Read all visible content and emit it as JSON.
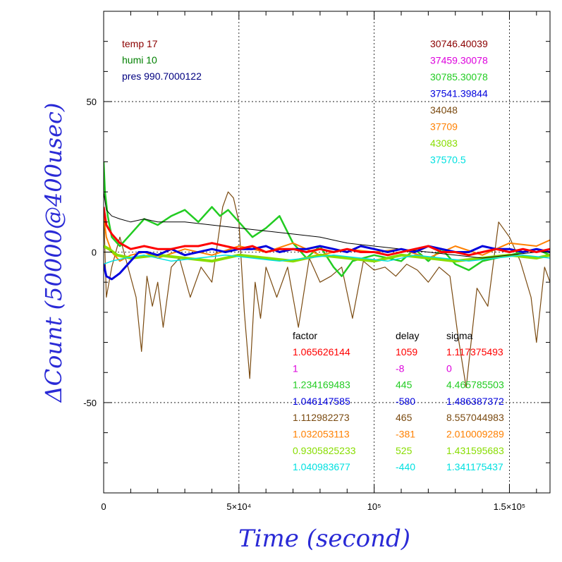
{
  "chart_data": {
    "type": "line",
    "xlabel": "Time (second)",
    "ylabel": "ΔCount (50000@400usec)",
    "xlim": [
      0,
      165000
    ],
    "ylim": [
      -80,
      80
    ],
    "grid": true,
    "x_ticks": [
      {
        "value": 0,
        "label": "0"
      },
      {
        "value": 50000,
        "label": "5×10⁴"
      },
      {
        "value": 100000,
        "label": "10⁵"
      },
      {
        "value": 150000,
        "label": "1.5×10⁵"
      }
    ],
    "y_ticks": [
      {
        "value": -50,
        "label": "-50"
      },
      {
        "value": 0,
        "label": "0"
      },
      {
        "value": 50,
        "label": "50"
      }
    ],
    "env": [
      {
        "text": "temp 17",
        "color": "#8b0000"
      },
      {
        "text": "humi 10",
        "color": "#008000"
      },
      {
        "text": "pres 990.7000122",
        "color": "#000080"
      }
    ],
    "means": [
      {
        "text": "30746.40039",
        "color": "#8b0000"
      },
      {
        "text": "37459.30078",
        "color": "#dd00dd"
      },
      {
        "text": "30785.30078",
        "color": "#22cc22"
      },
      {
        "text": "37541.39844",
        "color": "#0000dd"
      },
      {
        "text": "34048",
        "color": "#7a4a10"
      },
      {
        "text": "37709",
        "color": "#ff8000"
      },
      {
        "text": "43083",
        "color": "#88dd00"
      },
      {
        "text": "37570.5",
        "color": "#00e0e0"
      }
    ],
    "param_headers": {
      "factor": "factor",
      "delay": "delay",
      "sigma": "sigma"
    },
    "params": [
      {
        "factor": "1.065626144",
        "delay": "1059",
        "sigma": "1.117375493",
        "color": "#ff0000"
      },
      {
        "factor": "1",
        "delay": "-8",
        "sigma": "0",
        "color": "#dd00dd"
      },
      {
        "factor": "1.234169483",
        "delay": "445",
        "sigma": "4.465785503",
        "color": "#22cc22"
      },
      {
        "factor": "1.046147585",
        "delay": "-580",
        "sigma": "1.486387372",
        "color": "#0000dd"
      },
      {
        "factor": "1.112982273",
        "delay": "465",
        "sigma": "8.557044983",
        "color": "#7a4a10"
      },
      {
        "factor": "1.032053113",
        "delay": "-381",
        "sigma": "2.010009289",
        "color": "#ff8000"
      },
      {
        "factor": "0.9305825233",
        "delay": "525",
        "sigma": "1.431595683",
        "color": "#88dd00"
      },
      {
        "factor": "1.040983677",
        "delay": "-440",
        "sigma": "1.341175437",
        "color": "#00e0e0"
      }
    ],
    "series": [
      {
        "color": "#7a4a10",
        "width": 1.2,
        "x": [
          0,
          1000,
          3000,
          6000,
          9000,
          12000,
          14000,
          16000,
          18000,
          20000,
          22000,
          25000,
          28000,
          32000,
          36000,
          40000,
          44000,
          46000,
          48000,
          50000,
          52000,
          54000,
          56000,
          58000,
          60000,
          64000,
          68000,
          72000,
          76000,
          80000,
          84000,
          88000,
          92000,
          96000,
          100000,
          104000,
          108000,
          112000,
          116000,
          120000,
          124000,
          128000,
          131000,
          134000,
          138000,
          142000,
          146000,
          150000,
          154000,
          158000,
          160000,
          163000,
          165000
        ],
        "y": [
          15,
          -15,
          -5,
          5,
          -5,
          -15,
          -33,
          -8,
          -18,
          -10,
          -25,
          -5,
          -2,
          -15,
          -5,
          -10,
          15,
          20,
          18,
          10,
          -20,
          -42,
          -10,
          -22,
          -5,
          -15,
          -5,
          -25,
          -2,
          -10,
          -8,
          -5,
          -22,
          -3,
          -6,
          -5,
          -8,
          -4,
          -6,
          -10,
          -5,
          -8,
          -28,
          -45,
          -12,
          -18,
          10,
          5,
          -3,
          -15,
          -30,
          -5,
          -10
        ]
      },
      {
        "color": "#22cc22",
        "width": 2.5,
        "x": [
          0,
          500,
          1500,
          3000,
          6000,
          10000,
          15000,
          20000,
          25000,
          30000,
          35000,
          40000,
          43000,
          46000,
          50000,
          55000,
          60000,
          65000,
          70000,
          75000,
          80000,
          85000,
          88000,
          92000,
          96000,
          100000,
          105000,
          110000,
          115000,
          120000,
          125000,
          130000,
          135000,
          140000,
          145000,
          150000,
          155000,
          160000,
          165000
        ],
        "y": [
          30,
          20,
          12,
          5,
          2,
          6,
          11,
          9,
          12,
          14,
          10,
          15,
          12,
          14,
          10,
          5,
          8,
          12,
          3,
          -2,
          2,
          -5,
          -8,
          -3,
          -2,
          -1,
          -2,
          -3,
          1,
          -3,
          1,
          -4,
          -6,
          -3,
          -2,
          -1,
          0,
          1,
          -1
        ]
      },
      {
        "color": "#ff8000",
        "width": 2,
        "x": [
          0,
          1000,
          3000,
          6000,
          10000,
          15000,
          20000,
          30000,
          40000,
          50000,
          60000,
          70000,
          80000,
          90000,
          100000,
          110000,
          120000,
          130000,
          140000,
          150000,
          160000,
          165000
        ],
        "y": [
          12,
          5,
          0,
          -3,
          -1,
          0,
          -2,
          1,
          -1,
          2,
          0,
          3,
          -1,
          1,
          0,
          1,
          -2,
          2,
          -1,
          3,
          2,
          4
        ]
      },
      {
        "color": "#88dd00",
        "width": 4,
        "x": [
          0,
          2000,
          5000,
          10000,
          20000,
          30000,
          40000,
          50000,
          60000,
          70000,
          80000,
          90000,
          100000,
          110000,
          120000,
          130000,
          140000,
          150000,
          160000,
          165000
        ],
        "y": [
          2,
          1,
          -1,
          -2,
          -1,
          -2,
          -3,
          -1,
          -2,
          -3,
          -1,
          -2,
          -3,
          -1,
          -2,
          -3,
          -2,
          -1,
          -2,
          -1
        ]
      },
      {
        "color": "#00e0e0",
        "width": 1.5,
        "x": [
          0,
          3000,
          8000,
          15000,
          25000,
          35000,
          45000,
          55000,
          65000,
          75000,
          85000,
          95000,
          105000,
          115000,
          125000,
          135000,
          145000,
          155000,
          165000
        ],
        "y": [
          -4,
          -3,
          -2,
          -1,
          -3,
          -2,
          -1,
          -2,
          -3,
          -2,
          -1,
          -2,
          -3,
          -1,
          -2,
          -3,
          -2,
          -1,
          -2
        ]
      },
      {
        "color": "#000000",
        "width": 1,
        "x": [
          0,
          1000,
          3000,
          6000,
          10000,
          15000,
          20000,
          30000,
          40000,
          50000,
          60000,
          70000,
          80000,
          90000,
          100000,
          110000,
          120000,
          130000,
          140000,
          150000,
          160000,
          165000
        ],
        "y": [
          20,
          14,
          12,
          11,
          10,
          11,
          10,
          10,
          9,
          8,
          7,
          6,
          5,
          3,
          2,
          1,
          0,
          -1,
          -2,
          -1,
          0,
          1
        ]
      },
      {
        "color": "#0000dd",
        "width": 3,
        "x": [
          0,
          1000,
          3000,
          6000,
          10000,
          13000,
          16000,
          20000,
          25000,
          30000,
          35000,
          40000,
          45000,
          50000,
          55000,
          60000,
          65000,
          70000,
          75000,
          80000,
          85000,
          90000,
          95000,
          100000,
          105000,
          110000,
          115000,
          120000,
          125000,
          130000,
          135000,
          140000,
          145000,
          150000,
          155000,
          160000,
          165000
        ],
        "y": [
          -4,
          -8,
          -9,
          -7,
          -3,
          0,
          0,
          -1,
          1,
          -1,
          0,
          1,
          0,
          1,
          1,
          2,
          0,
          1,
          1,
          2,
          1,
          0,
          2,
          1,
          0,
          1,
          0,
          2,
          1,
          0,
          0,
          2,
          1,
          1,
          0,
          1,
          0
        ]
      },
      {
        "color": "#ff0000",
        "width": 3,
        "x": [
          0,
          1000,
          3000,
          6000,
          10000,
          15000,
          20000,
          25000,
          30000,
          35000,
          40000,
          45000,
          50000,
          55000,
          60000,
          65000,
          70000,
          75000,
          80000,
          85000,
          90000,
          95000,
          100000,
          105000,
          110000,
          115000,
          120000,
          125000,
          130000,
          135000,
          140000,
          145000,
          150000,
          155000,
          160000,
          165000
        ],
        "y": [
          15,
          9,
          6,
          3,
          1,
          2,
          1,
          1,
          2,
          2,
          3,
          2,
          1,
          2,
          0,
          1,
          1,
          0,
          1,
          0,
          1,
          0,
          0,
          -1,
          0,
          1,
          2,
          0,
          0,
          -1,
          0,
          1,
          0,
          1,
          0,
          1
        ]
      }
    ]
  }
}
